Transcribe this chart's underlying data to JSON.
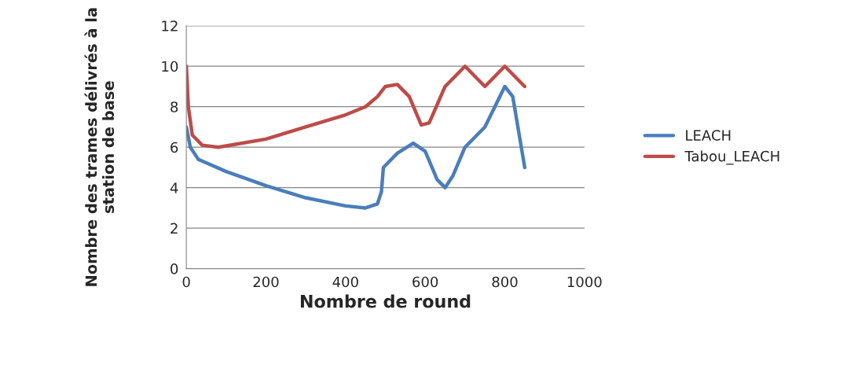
{
  "chart_data": {
    "type": "line",
    "xlabel": "Nombre de round",
    "ylabel": "Nombre des trames délivrés à la\nstation de base",
    "xlim": [
      0,
      1000
    ],
    "xticks": [
      0,
      200,
      400,
      600,
      800,
      1000
    ],
    "ylim": [
      0,
      12
    ],
    "yticks": [
      0,
      2,
      4,
      6,
      8,
      10,
      12
    ],
    "grid": "y",
    "legend": "right",
    "line_style": "solid",
    "marker": "none",
    "series": [
      {
        "name": "LEACH",
        "color": "#4a7ebb",
        "x": [
          0,
          10,
          30,
          100,
          200,
          300,
          400,
          450,
          480,
          490,
          495,
          530,
          570,
          600,
          630,
          650,
          670,
          700,
          750,
          800,
          820,
          850
        ],
        "values": [
          7,
          6,
          5.4,
          4.8,
          4.1,
          3.5,
          3.1,
          3,
          3.2,
          3.8,
          5,
          5.7,
          6.2,
          5.8,
          4.4,
          4,
          4.6,
          6,
          7,
          9,
          8.5,
          5
        ]
      },
      {
        "name": "Tabou_LEACH",
        "color": "#be4b48",
        "x": [
          0,
          5,
          15,
          40,
          80,
          200,
          300,
          400,
          450,
          480,
          500,
          530,
          560,
          590,
          610,
          650,
          700,
          750,
          800,
          850
        ],
        "values": [
          10,
          8,
          6.6,
          6.1,
          6,
          6.4,
          7,
          7.6,
          8,
          8.5,
          9,
          9.1,
          8.5,
          7.1,
          7.2,
          9,
          10,
          9,
          10,
          9
        ]
      }
    ]
  }
}
